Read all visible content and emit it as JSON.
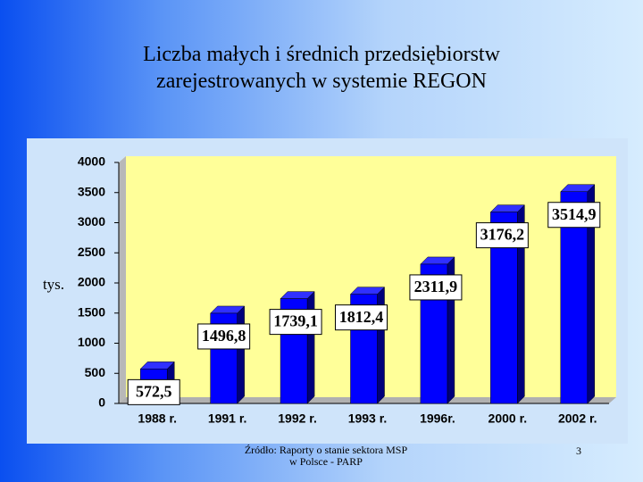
{
  "chart_data": {
    "type": "bar",
    "title": "Liczba małych i średnich przedsiębiorstw\nzarejestrowanych w systemie REGON",
    "y_label": "tys.",
    "categories": [
      "1988 r.",
      "1991 r.",
      "1992 r.",
      "1993 r.",
      "1996r.",
      "2000 r.",
      "2002 r."
    ],
    "values": [
      572.5,
      1496.8,
      1739.1,
      1812.4,
      2311.9,
      3176.2,
      3514.9
    ],
    "value_labels": [
      "572,5",
      "1496,8",
      "1739,1",
      "1812,4",
      "2311,9",
      "3176,2",
      "3514,9"
    ],
    "color": "#0000ff",
    "ylim": [
      0,
      4000
    ],
    "yticks": [
      0,
      500,
      1000,
      1500,
      2000,
      2500,
      3000,
      3500,
      4000
    ],
    "grid": false
  },
  "footer": {
    "source": "Źródło: Raporty o stanie sektora MSP\nw Polsce - PARP",
    "page_number": "3"
  }
}
